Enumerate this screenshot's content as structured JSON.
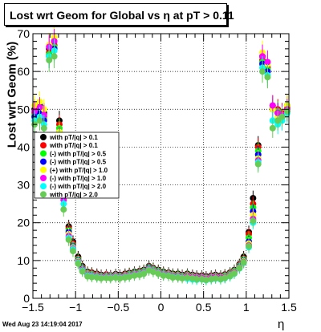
{
  "chart_data": {
    "type": "scatter",
    "title": "Lost wrt Geom for Global vs  η at pT > 0.11",
    "xlabel": "η",
    "ylabel": "Lost wrt Geom (%)",
    "xlim": [
      -1.5,
      1.5
    ],
    "ylim": [
      0,
      70
    ],
    "x_ticks": [
      "−1.5",
      "−1",
      "−0.5",
      "0",
      "0.5",
      "1",
      "1.5"
    ],
    "y_ticks": [
      "0",
      "10",
      "20",
      "30",
      "40",
      "50",
      "60",
      "70"
    ],
    "grid": true,
    "legend_position": "left",
    "timestamp": "Wed Aug 23 14:19:04 2017",
    "x": [
      -1.48,
      -1.42,
      -1.37,
      -1.31,
      -1.25,
      -1.19,
      -1.14,
      -1.08,
      -1.03,
      -0.97,
      -0.92,
      -0.86,
      -0.81,
      -0.75,
      -0.7,
      -0.64,
      -0.59,
      -0.53,
      -0.48,
      -0.42,
      -0.37,
      -0.31,
      -0.25,
      -0.2,
      -0.14,
      -0.09,
      -0.03,
      0.03,
      0.09,
      0.14,
      0.2,
      0.25,
      0.31,
      0.37,
      0.42,
      0.48,
      0.53,
      0.59,
      0.64,
      0.7,
      0.75,
      0.81,
      0.86,
      0.92,
      0.97,
      1.03,
      1.08,
      1.14,
      1.19,
      1.25,
      1.31,
      1.37,
      1.42,
      1.48
    ],
    "series": [
      {
        "name": "with pT/|q| > 0.1",
        "color": "#000000",
        "values": [
          50,
          51,
          49,
          66,
          68,
          47,
          30,
          19,
          15,
          11,
          8.5,
          7,
          6.8,
          6.5,
          6.2,
          6.3,
          6.1,
          6.4,
          6.2,
          6.5,
          6.7,
          7,
          7.2,
          7.5,
          8.5,
          8,
          7.5,
          7,
          6.8,
          6.5,
          6.5,
          6.2,
          6.5,
          6.2,
          6,
          6,
          5.8,
          6,
          6.2,
          6,
          6.3,
          6.8,
          7.5,
          9,
          11,
          17.5,
          26.5,
          40.5,
          64,
          60,
          50,
          49,
          48,
          51
        ]
      },
      {
        "name": "with pT/|q| > 0.1",
        "color": "#ff0000",
        "values": [
          49,
          50,
          48,
          65,
          67,
          46,
          29,
          18.5,
          14.5,
          10.5,
          8.2,
          6.8,
          6.6,
          6.3,
          6,
          6.2,
          6,
          6.2,
          6,
          6.3,
          6.5,
          6.8,
          7,
          7.3,
          8.3,
          7.8,
          7.3,
          6.8,
          6.6,
          6.3,
          6.3,
          6,
          6.3,
          6,
          5.8,
          5.8,
          5.6,
          5.8,
          6,
          5.8,
          6.1,
          6.6,
          7.3,
          8.8,
          10.5,
          17,
          25,
          40,
          63,
          61,
          51,
          50,
          49,
          50.5
        ]
      },
      {
        "name": "with pT/|q| > 0.5",
        "color": "#00ff00",
        "values": [
          48.5,
          49.5,
          47.5,
          64.5,
          66.5,
          45,
          28,
          18,
          14,
          10.3,
          8,
          6.6,
          6.4,
          6.1,
          5.9,
          6,
          5.9,
          6.1,
          5.9,
          6.1,
          6.4,
          6.7,
          6.9,
          7.2,
          8.2,
          7.7,
          7.2,
          6.7,
          6.5,
          6.2,
          6.2,
          5.9,
          6.2,
          5.9,
          5.7,
          5.7,
          5.5,
          5.7,
          5.9,
          5.7,
          6,
          6.5,
          7.2,
          8.6,
          10.3,
          16,
          24,
          39,
          62.5,
          60.5,
          50.5,
          49.5,
          48.5,
          50
        ]
      },
      {
        "name": "with pT/|q| > 0.5",
        "color": "#0000ff",
        "values": [
          48,
          49,
          47,
          64,
          66,
          44,
          27.5,
          17.5,
          13.8,
          10,
          7.8,
          6.4,
          6.2,
          6,
          5.8,
          5.9,
          5.8,
          6,
          5.8,
          6,
          6.2,
          6.5,
          6.7,
          7,
          8,
          7.5,
          7,
          6.5,
          6.4,
          6,
          6,
          5.8,
          6,
          5.8,
          5.6,
          5.6,
          5.4,
          5.6,
          5.8,
          5.6,
          5.8,
          6.3,
          7,
          8.4,
          10,
          15,
          23,
          38,
          62,
          60,
          50,
          49,
          48,
          49.5
        ]
      },
      {
        "name": "with pT/|q| > 1.0",
        "color": "#ffff00",
        "values": [
          51,
          52,
          50,
          67,
          69,
          44,
          27,
          17,
          13.5,
          9.8,
          7.6,
          6.3,
          6.1,
          5.9,
          5.7,
          5.8,
          5.7,
          5.9,
          5.7,
          5.9,
          6.1,
          6.4,
          6.6,
          6.9,
          7.8,
          7.4,
          6.9,
          6.4,
          6.3,
          5.9,
          5.9,
          5.7,
          5.9,
          5.7,
          5.5,
          5.5,
          5.3,
          5.5,
          5.7,
          5.5,
          5.7,
          6.2,
          6.9,
          8.2,
          9.8,
          14.5,
          22,
          37,
          65,
          62,
          50,
          48,
          47,
          51
        ]
      },
      {
        "name": "with pT/|q| > 1.0",
        "color": "#ff00ff",
        "values": [
          49.5,
          50.5,
          48.5,
          66.5,
          68,
          43,
          26,
          16.5,
          13.2,
          9.6,
          7.5,
          6.2,
          6,
          5.8,
          5.6,
          5.7,
          5.6,
          5.8,
          5.6,
          5.8,
          6,
          6.3,
          6.5,
          6.8,
          7.7,
          7.3,
          6.8,
          6.3,
          6.2,
          5.8,
          5.8,
          5.6,
          5.8,
          5.6,
          5.4,
          5.4,
          5.2,
          5.4,
          5.6,
          5.4,
          5.6,
          6.1,
          6.8,
          8.1,
          9.6,
          14,
          21,
          36.5,
          64,
          62.5,
          51,
          49,
          48.5,
          50
        ]
      },
      {
        "name": "with pT/|q| > 2.0",
        "color": "#00ffff",
        "values": [
          47,
          48,
          46,
          64,
          65.5,
          42,
          25,
          16,
          13,
          9.4,
          7.3,
          6,
          5.8,
          5.6,
          5.4,
          5.5,
          5.4,
          5.6,
          5.4,
          5.6,
          5.8,
          6.1,
          6.3,
          6.6,
          7.5,
          7.1,
          6.6,
          6.1,
          6,
          5.6,
          5.6,
          5.4,
          5.2,
          5,
          4.9,
          5,
          4.8,
          5,
          5.2,
          5,
          5.3,
          5.8,
          6.5,
          7.9,
          9.4,
          13.5,
          20,
          36,
          61,
          59,
          47,
          46,
          47,
          49
        ]
      },
      {
        "name": "with pT/|q| > 2.0",
        "color": "#66cc55",
        "values": [
          46,
          47,
          45,
          63,
          64,
          41,
          23.5,
          15.5,
          12.5,
          9.2,
          7.1,
          5.8,
          5.6,
          5.5,
          5.3,
          5.4,
          5.3,
          5.5,
          5.3,
          5.5,
          5.7,
          6,
          6.2,
          6.5,
          7.4,
          7,
          6.5,
          6,
          5.9,
          5.5,
          5.5,
          5.3,
          5.5,
          5.3,
          5.1,
          5.1,
          4.9,
          5.1,
          5.3,
          5.1,
          5.4,
          5.9,
          6.6,
          8,
          9.5,
          13.8,
          20.5,
          35.5,
          60,
          58.5,
          45,
          47,
          48,
          49.5
        ]
      }
    ]
  },
  "legend": {
    "entries": [
      {
        "prefix": "",
        "text": "with pT/|q| > 0.1",
        "color": "#000000"
      },
      {
        "prefix": "",
        "text": "with pT/|q| > 0.1",
        "color": "#ff0000"
      },
      {
        "prefix": "(-)",
        "text": "with pT/|q| > 0.5",
        "color": "#00ff00"
      },
      {
        "prefix": "(-)",
        "text": "with pT/|q| > 0.5",
        "color": "#0000ff"
      },
      {
        "prefix": "(+)",
        "text": "with pT/|q| > 1.0",
        "color": "#ffff00"
      },
      {
        "prefix": "(-)",
        "text": "with pT/|q| > 1.0",
        "color": "#ff00ff"
      },
      {
        "prefix": "(-)",
        "text": "with pT/|q| > 2.0",
        "color": "#00ffff"
      },
      {
        "prefix": "",
        "text": "with pT/|q| > 2.0",
        "color": "#66cc55"
      }
    ]
  }
}
